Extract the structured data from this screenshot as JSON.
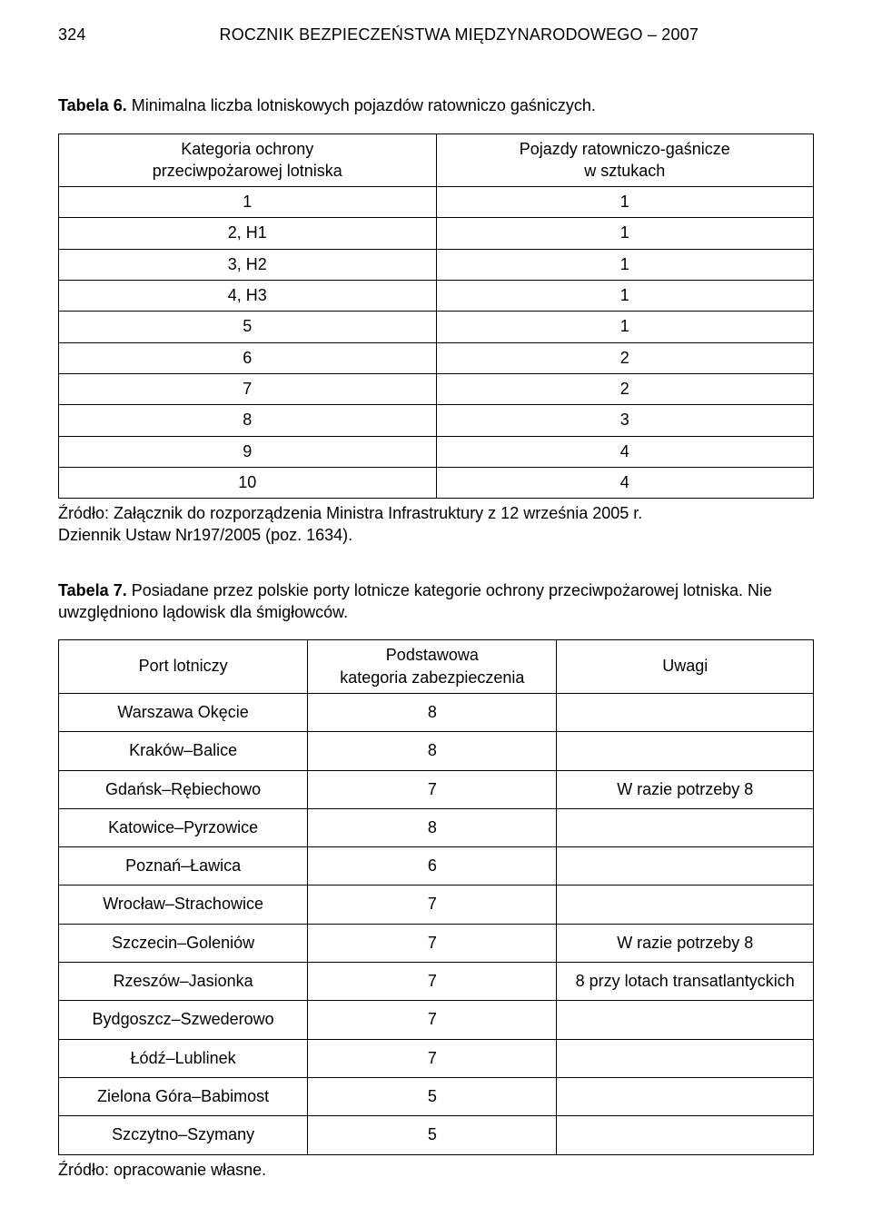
{
  "runningHead": {
    "pageNumber": "324",
    "title": "ROCZNIK  BEZPIECZEŃSTWA  MIĘDZYNARODOWEGO – 2007"
  },
  "table6": {
    "captionBold": "Tabela 6.",
    "captionRest": " Minimalna liczba lotniskowych pojazdów ratowniczo gaśniczych.",
    "headers": [
      "Kategoria ochrony\nprzeciwpożarowej lotniska",
      "Pojazdy ratowniczo-gaśnicze\nw sztukach"
    ],
    "rows": [
      [
        "1",
        "1"
      ],
      [
        "2, H1",
        "1"
      ],
      [
        "3, H2",
        "1"
      ],
      [
        "4, H3",
        "1"
      ],
      [
        "5",
        "1"
      ],
      [
        "6",
        "2"
      ],
      [
        "7",
        "2"
      ],
      [
        "8",
        "3"
      ],
      [
        "9",
        "4"
      ],
      [
        "10",
        "4"
      ]
    ],
    "source": "Źródło: Załącznik do rozporządzenia Ministra Infrastruktury z 12 września 2005 r.\nDziennik Ustaw Nr197/2005 (poz. 1634)."
  },
  "table7": {
    "captionBold": "Tabela 7.",
    "captionRest": " Posiadane przez polskie porty lotnicze kategorie ochrony przeciwpożarowej lotniska. Nie uwzględniono lądowisk dla śmigłowców.",
    "headers": [
      "Port lotniczy",
      "Podstawowa\nkategoria zabezpieczenia",
      "Uwagi"
    ],
    "rows": [
      [
        "Warszawa Okęcie",
        "8",
        ""
      ],
      [
        "Kraków–Balice",
        "8",
        ""
      ],
      [
        "Gdańsk–Rębiechowo",
        "7",
        "W razie potrzeby 8"
      ],
      [
        "Katowice–Pyrzowice",
        "8",
        ""
      ],
      [
        "Poznań–Ławica",
        "6",
        ""
      ],
      [
        "Wrocław–Strachowice",
        "7",
        ""
      ],
      [
        "Szczecin–Goleniów",
        "7",
        "W razie potrzeby 8"
      ],
      [
        "Rzeszów–Jasionka",
        "7",
        "8 przy lotach transatlantyckich"
      ],
      [
        "Bydgoszcz–Szwederowo",
        "7",
        ""
      ],
      [
        "Łódź–Lublinek",
        "7",
        ""
      ],
      [
        "Zielona Góra–Babimost",
        "5",
        ""
      ],
      [
        "Szczytno–Szymany",
        "5",
        ""
      ]
    ],
    "source": "Źródło: opracowanie własne."
  }
}
